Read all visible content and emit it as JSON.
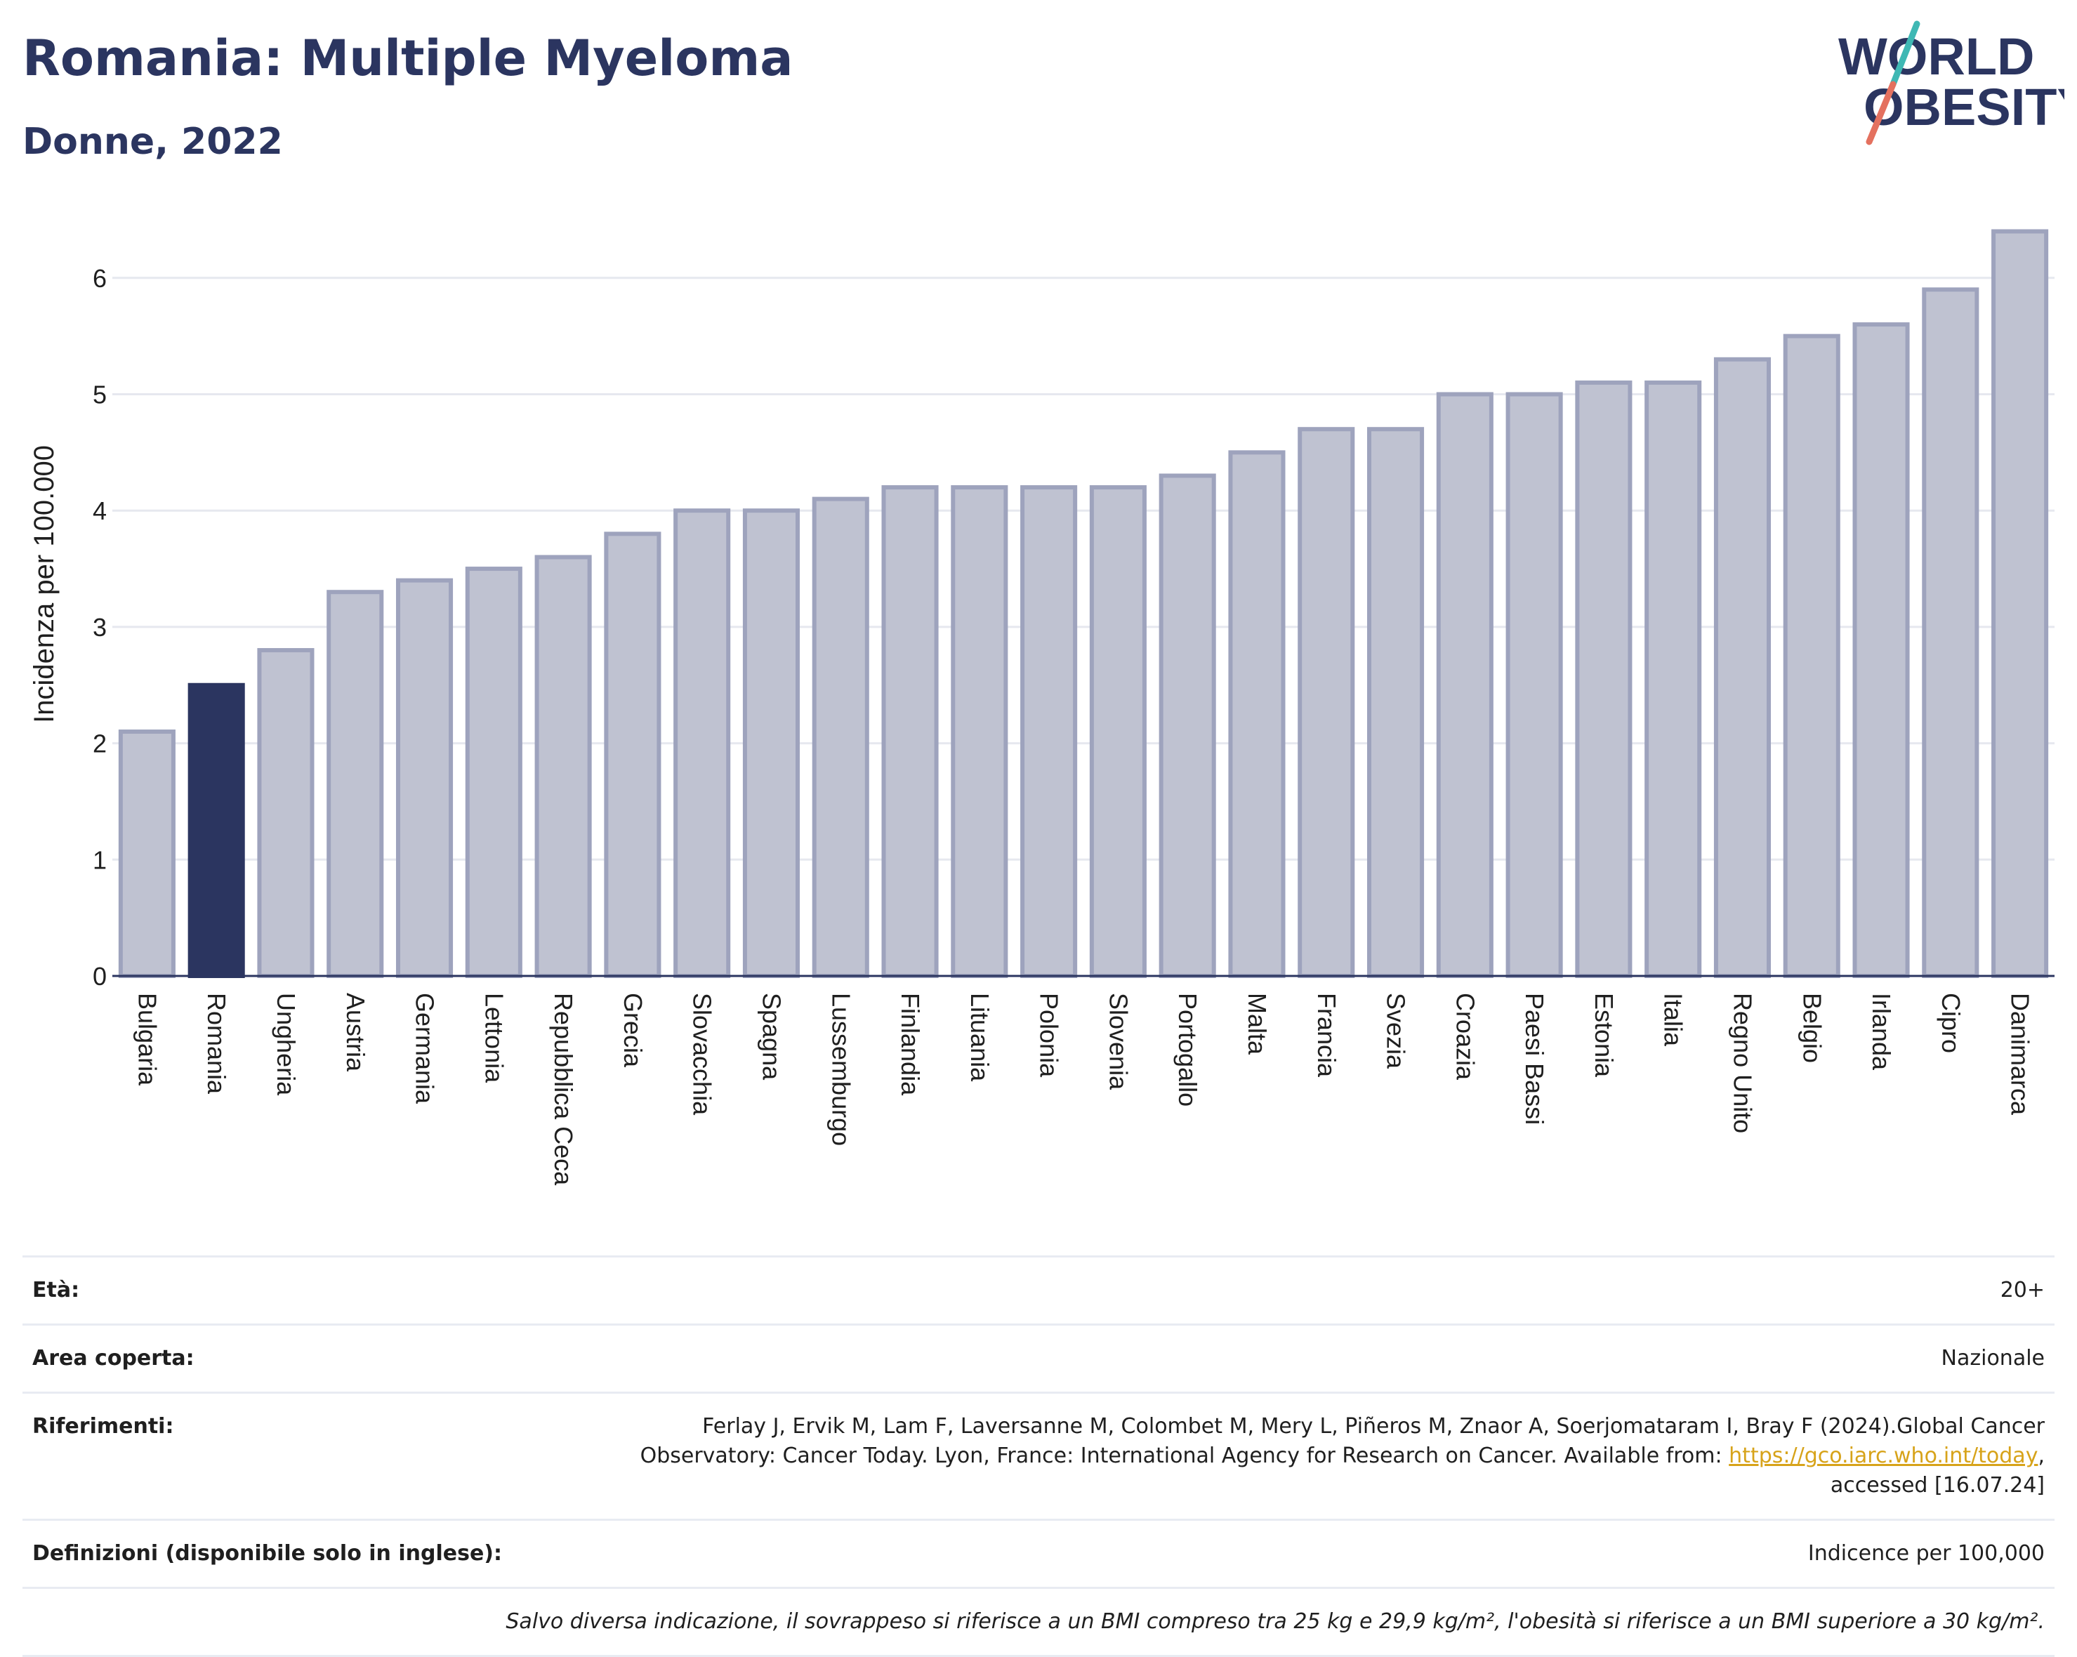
{
  "header": {
    "title": "Romania: Multiple Myeloma",
    "subtitle": "Donne, 2022"
  },
  "logo": {
    "line1": "WORLD",
    "line2": "OBESITY"
  },
  "colors": {
    "highlight": "#2b3560",
    "bar_fill": "#bfc2d1",
    "bar_stroke": "#9ea3bd",
    "title": "#2b3560",
    "logo_slash_red": "#e4715f",
    "logo_slash_teal": "#3fb8b4",
    "link": "#d7a31a"
  },
  "chart_data": {
    "type": "bar",
    "ylabel": "Incidenza per 100.000",
    "xlabel": "",
    "ylim": [
      0,
      6.6
    ],
    "yticks": [
      0,
      1,
      2,
      3,
      4,
      5,
      6
    ],
    "grid": true,
    "highlight": "Romania",
    "categories": [
      "Bulgaria",
      "Romania",
      "Ungheria",
      "Austria",
      "Germania",
      "Lettonia",
      "Repubblica Ceca",
      "Grecia",
      "Slovacchia",
      "Spagna",
      "Lussemburgo",
      "Finlandia",
      "Lituania",
      "Polonia",
      "Slovenia",
      "Portogallo",
      "Malta",
      "Francia",
      "Svezia",
      "Croazia",
      "Paesi Bassi",
      "Estonia",
      "Italia",
      "Regno Unito",
      "Belgio",
      "Irlanda",
      "Cipro",
      "Danimarca"
    ],
    "values": [
      2.1,
      2.5,
      2.8,
      3.3,
      3.4,
      3.5,
      3.6,
      3.8,
      4.0,
      4.0,
      4.1,
      4.2,
      4.2,
      4.2,
      4.2,
      4.3,
      4.5,
      4.7,
      4.7,
      5.0,
      5.0,
      5.1,
      5.1,
      5.3,
      5.5,
      5.6,
      5.9,
      6.4
    ]
  },
  "info": {
    "age_label": "Età:",
    "age_value": "20+",
    "area_label": "Area coperta:",
    "area_value": "Nazionale",
    "refs_label": "Riferimenti:",
    "refs_text_1": "Ferlay J, Ervik M, Lam F, Laversanne M, Colombet M, Mery L, Piñeros M, Znaor A, Soerjomataram I, Bray F (2024).Global Cancer Observatory: Cancer Today. Lyon, France: International Agency for Research on Cancer. Available from: ",
    "refs_link": "https://gco.iarc.who.int/today",
    "refs_text_2": ", accessed [16.07.24]",
    "defs_label": "Definizioni (disponibile solo in inglese):",
    "defs_value": "Indicence per 100,000",
    "note": "Salvo diversa indicazione, il sovrappeso si riferisce a un BMI compreso tra 25 kg e 29,9 kg/m², l'obesità si riferisce a un BMI superiore a 30 kg/m²."
  }
}
